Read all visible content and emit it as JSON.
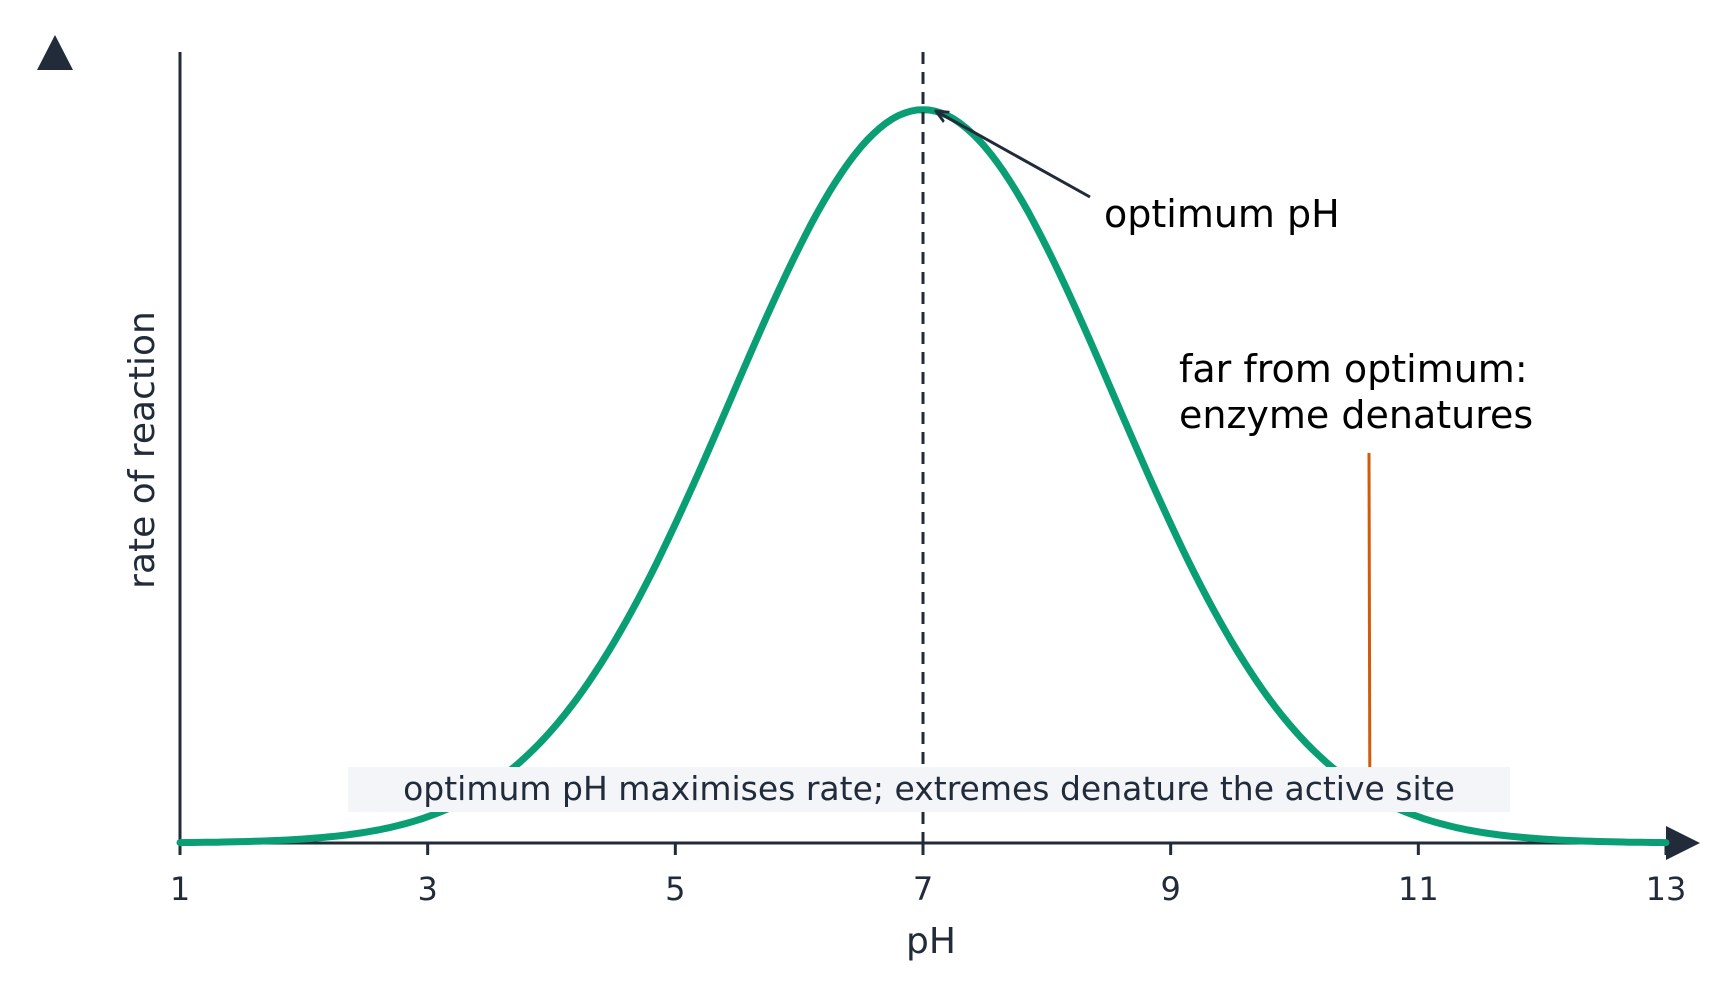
{
  "chart_data": {
    "type": "line",
    "title": "",
    "xlabel": "pH",
    "ylabel": "rate of reaction",
    "xlim": [
      1,
      13
    ],
    "ylim": [
      0,
      1.2
    ],
    "xticks": [
      1,
      3,
      5,
      7,
      9,
      11,
      13
    ],
    "yticks": [],
    "grid": false,
    "legend": "none",
    "series": [
      {
        "x": [
          1,
          1.5,
          2,
          2.5,
          3,
          3.5,
          4,
          4.5,
          5,
          5.5,
          6,
          6.5,
          7,
          7.5,
          8,
          8.5,
          9,
          9.5,
          10,
          10.5,
          11,
          11.5,
          12,
          12.5,
          13
        ],
        "y": [
          0.003,
          0.008,
          0.02,
          0.044,
          0.092,
          0.175,
          0.302,
          0.47,
          0.664,
          0.854,
          1.003,
          1.085,
          1.1,
          1.085,
          1.003,
          0.854,
          0.664,
          0.47,
          0.302,
          0.175,
          0.092,
          0.044,
          0.02,
          0.008,
          0.003
        ]
      }
    ],
    "reference_line": {
      "x": 7,
      "style": "dashed"
    },
    "annotations": [
      {
        "text": "optimum pH",
        "points_to": {
          "x": 7,
          "y": 1.1
        }
      },
      {
        "text_lines": [
          "far from optimum:",
          "enzyme denatures"
        ],
        "points_to": {
          "x": 10.6,
          "y": 0.12
        }
      }
    ],
    "caption": "optimum pH maximises rate; extremes denature the active site",
    "colors": {
      "curve": "#0a9e74",
      "axis": "#222b3a",
      "reference_line": "#222b3a",
      "optimum_arrow": "#222b3a",
      "denature_pointer": "#d35a08",
      "caption_background": "#f3f5f8"
    }
  }
}
